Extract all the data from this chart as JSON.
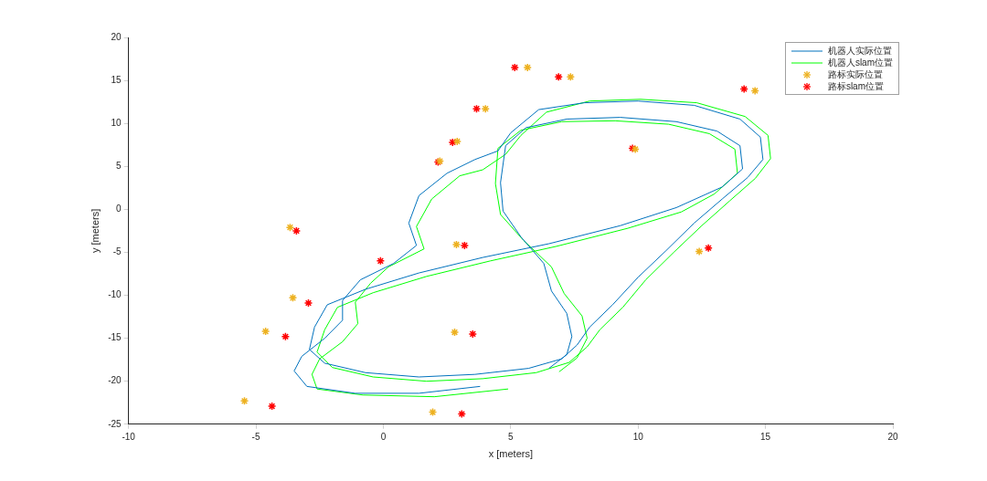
{
  "chart_data": {
    "type": "line",
    "xlabel": "x [meters]",
    "ylabel": "y [meters]",
    "xlim": [
      -10,
      20
    ],
    "ylim": [
      -25,
      20
    ],
    "xticks": [
      -10,
      -5,
      0,
      5,
      10,
      15,
      20
    ],
    "yticks": [
      -25,
      -20,
      -15,
      -10,
      -5,
      0,
      5,
      10,
      15,
      20
    ],
    "grid": false,
    "legend": "top right",
    "series": [
      {
        "name": "机器人实际位置",
        "marker": "none",
        "color": "#0072bd",
        "x": [
          3.8,
          1.4,
          -1.1,
          -3.0,
          -3.5,
          -3.2,
          -2.3,
          -1.6,
          -1.6,
          -0.9,
          0.4,
          1.3,
          1.0,
          1.4,
          2.5,
          3.6,
          4.5,
          5.0,
          6.1,
          7.9,
          10.0,
          12.2,
          14.0,
          14.8,
          14.9,
          14.3,
          13.3,
          12.2,
          11.1,
          10.0,
          9.0,
          8.1,
          7.6,
          7.0,
          5.7,
          3.6,
          1.4,
          -0.7,
          -2.3,
          -2.9,
          -2.7,
          -2.2,
          -0.7,
          1.4,
          3.9,
          6.5,
          9.3,
          11.5,
          13.3,
          14.1,
          14.0,
          13.1,
          11.5,
          9.3,
          7.2,
          5.6,
          4.8,
          4.6,
          4.7,
          5.4,
          6.3,
          6.6,
          7.2,
          7.4,
          7.2,
          6.5
        ],
        "values": [
          -20.6,
          -21.4,
          -21.4,
          -20.6,
          -18.8,
          -17.1,
          -15.0,
          -12.9,
          -10.6,
          -8.2,
          -6.3,
          -4.2,
          -1.6,
          1.6,
          4.2,
          5.8,
          6.8,
          8.9,
          11.6,
          12.4,
          12.6,
          12.1,
          10.5,
          8.4,
          5.8,
          3.7,
          1.2,
          -1.6,
          -4.8,
          -7.9,
          -11.1,
          -13.7,
          -15.8,
          -17.4,
          -18.5,
          -19.2,
          -19.5,
          -19.0,
          -17.9,
          -16.3,
          -13.7,
          -11.1,
          -9.3,
          -7.4,
          -5.6,
          -4.0,
          -1.9,
          0.2,
          2.6,
          4.7,
          7.4,
          9.1,
          10.2,
          10.7,
          10.5,
          9.5,
          7.4,
          3.1,
          -0.2,
          -3.2,
          -6.3,
          -9.5,
          -12.1,
          -14.8,
          -16.9,
          -18.5
        ]
      },
      {
        "name": "机器人slam位置",
        "marker": "none",
        "color": "#00ff00",
        "x": [
          4.9,
          2.0,
          -0.8,
          -2.6,
          -2.8,
          -2.5,
          -1.6,
          -1.0,
          -1.1,
          -0.5,
          0.2,
          1.6,
          1.3,
          1.9,
          3.0,
          3.9,
          4.8,
          5.4,
          6.4,
          8.1,
          10.1,
          12.3,
          14.2,
          15.1,
          15.2,
          14.6,
          13.6,
          12.5,
          11.4,
          10.3,
          9.4,
          8.5,
          8.0,
          7.3,
          6.0,
          3.9,
          1.7,
          -0.4,
          -2.0,
          -2.6,
          -2.3,
          -1.8,
          -0.4,
          1.7,
          4.2,
          6.8,
          9.6,
          11.7,
          13.0,
          13.9,
          13.8,
          12.8,
          11.2,
          9.1,
          7.0,
          5.4,
          4.5,
          4.4,
          4.6,
          5.5,
          6.6,
          7.1,
          7.8,
          8.0,
          7.6,
          6.9
        ],
        "values": [
          -20.9,
          -21.8,
          -21.6,
          -20.9,
          -19.2,
          -17.4,
          -15.4,
          -13.3,
          -10.8,
          -8.6,
          -6.7,
          -4.6,
          -2.0,
          1.2,
          3.9,
          4.6,
          6.4,
          8.6,
          11.3,
          12.6,
          12.8,
          12.4,
          10.8,
          8.6,
          5.9,
          3.6,
          1.0,
          -1.9,
          -5.0,
          -8.2,
          -11.4,
          -14.0,
          -16.0,
          -17.8,
          -19.0,
          -19.7,
          -20.0,
          -19.5,
          -18.4,
          -16.6,
          -14.0,
          -11.4,
          -9.7,
          -7.8,
          -6.0,
          -4.3,
          -2.2,
          -0.3,
          1.8,
          4.2,
          7.0,
          8.8,
          9.9,
          10.3,
          10.2,
          9.2,
          7.1,
          3.0,
          -0.6,
          -3.6,
          -6.7,
          -9.8,
          -12.4,
          -15.0,
          -17.3,
          -18.9
        ]
      },
      {
        "name": "路标实际位置",
        "type": "scatter",
        "marker": "cross",
        "color": "#edb120",
        "x": [
          5.66,
          7.35,
          4.01,
          2.9,
          2.22,
          -3.66,
          -3.55,
          -4.62,
          -5.45,
          2.87,
          2.8,
          1.94,
          9.89,
          14.59,
          12.4
        ],
        "values": [
          16.5,
          15.4,
          11.7,
          7.9,
          5.6,
          -2.1,
          -10.3,
          -14.2,
          -22.3,
          -4.1,
          -14.3,
          -23.6,
          7.0,
          13.8,
          -4.9
        ]
      },
      {
        "name": "路标slam位置",
        "type": "scatter",
        "marker": "cross",
        "color": "#ff0000",
        "x": [
          5.16,
          6.88,
          3.66,
          2.72,
          2.15,
          -3.41,
          -2.94,
          -3.84,
          -4.37,
          3.19,
          3.51,
          3.08,
          9.78,
          14.16,
          12.76,
          -0.11
        ],
        "values": [
          16.5,
          15.4,
          11.7,
          7.8,
          5.5,
          -2.5,
          -10.9,
          -14.8,
          -22.9,
          -4.2,
          -14.5,
          -23.8,
          7.1,
          14.0,
          -4.5,
          -6.0
        ]
      }
    ]
  }
}
